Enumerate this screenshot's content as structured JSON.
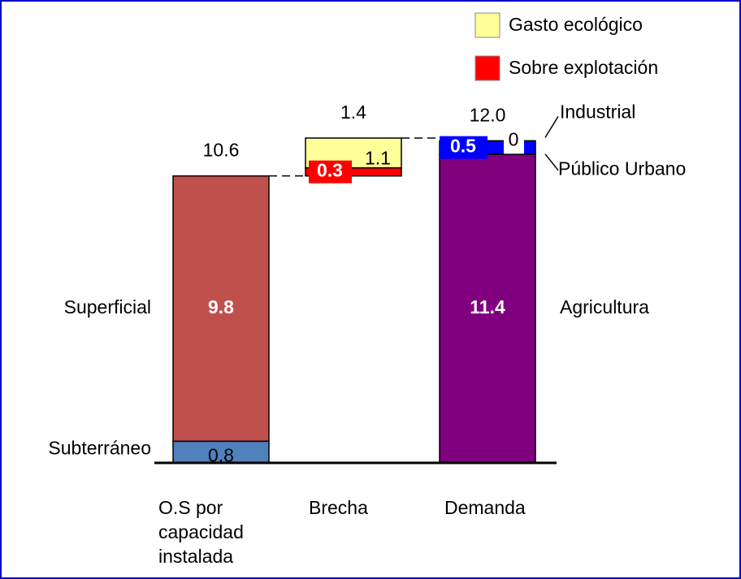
{
  "chart_data": {
    "type": "waterfall",
    "categories": [
      "O.S por\ncapacidad\ninstalada",
      "Brecha",
      "Demanda"
    ],
    "floating": [
      false,
      true,
      false
    ],
    "totals": [
      10.6,
      1.4,
      12.0
    ],
    "total_labels": [
      "10.6",
      "1.4",
      "12.0"
    ],
    "series": [
      {
        "name": "Subterráneo",
        "color": "#4f81bd",
        "values": [
          0.8,
          null,
          null
        ],
        "label_position": "left"
      },
      {
        "name": "Superficial",
        "color": "#c0504d",
        "values": [
          9.8,
          null,
          null
        ],
        "label_position": "left"
      },
      {
        "name": "Sobre explotación",
        "color": "#ff0000",
        "values": [
          null,
          0.3,
          null
        ],
        "label_position": "legend"
      },
      {
        "name": "Gasto ecológico",
        "color": "#ffff99",
        "values": [
          null,
          1.1,
          null
        ],
        "label_position": "legend"
      },
      {
        "name": "Agricultura",
        "color": "#800080",
        "values": [
          null,
          null,
          11.4
        ],
        "label_position": "right"
      },
      {
        "name": "Público Urbano",
        "color": "#0000ff",
        "values": [
          null,
          null,
          0.5
        ],
        "label_position": "right"
      },
      {
        "name": "Industrial",
        "color": "#ffffff",
        "values": [
          null,
          null,
          0
        ],
        "label_position": "right"
      }
    ]
  }
}
